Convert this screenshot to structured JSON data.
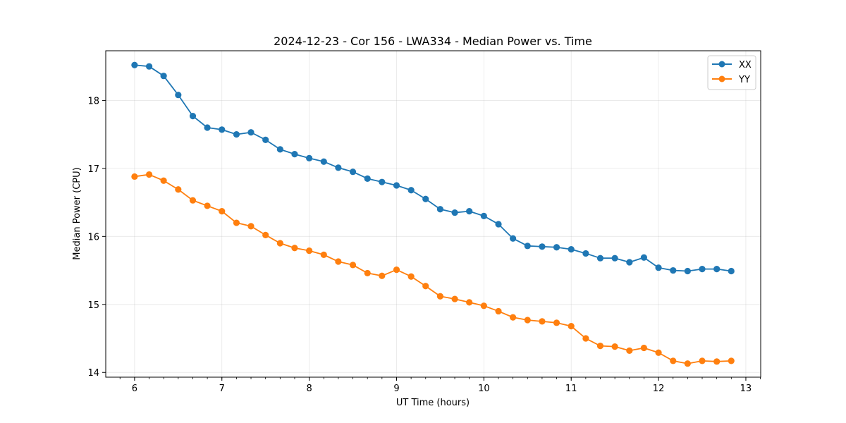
{
  "chart_data": {
    "type": "line",
    "title": "2024-12-23 - Cor 156 - LWA334 - Median Power vs. Time",
    "xlabel": "UT Time (hours)",
    "ylabel": "Median Power (CPU)",
    "xlim": [
      5.67,
      13.17
    ],
    "ylim": [
      13.93,
      18.73
    ],
    "xticks": [
      6,
      7,
      8,
      9,
      10,
      11,
      12,
      13
    ],
    "xtick_labels": [
      "6",
      "7",
      "8",
      "9",
      "10",
      "11",
      "12",
      "13"
    ],
    "yticks": [
      14,
      15,
      16,
      17,
      18
    ],
    "ytick_labels": [
      "14",
      "15",
      "16",
      "17",
      "18"
    ],
    "grid": true,
    "legend_position": "top-right",
    "x": [
      6.0,
      6.167,
      6.333,
      6.5,
      6.667,
      6.833,
      7.0,
      7.167,
      7.333,
      7.5,
      7.667,
      7.833,
      8.0,
      8.167,
      8.333,
      8.5,
      8.667,
      8.833,
      9.0,
      9.167,
      9.333,
      9.5,
      9.667,
      9.833,
      10.0,
      10.167,
      10.333,
      10.5,
      10.667,
      10.833,
      11.0,
      11.167,
      11.333,
      11.5,
      11.667,
      11.833,
      12.0,
      12.167,
      12.333,
      12.5,
      12.667,
      12.833
    ],
    "series": [
      {
        "name": "XX",
        "color": "#1f77b4",
        "values": [
          18.52,
          18.5,
          18.36,
          18.08,
          17.77,
          17.6,
          17.57,
          17.5,
          17.53,
          17.42,
          17.28,
          17.21,
          17.15,
          17.1,
          17.01,
          16.95,
          16.85,
          16.8,
          16.75,
          16.68,
          16.55,
          16.4,
          16.35,
          16.37,
          16.3,
          16.18,
          15.97,
          15.86,
          15.85,
          15.84,
          15.81,
          15.75,
          15.68,
          15.68,
          15.62,
          15.69,
          15.54,
          15.5,
          15.49,
          15.52,
          15.52,
          15.49
        ]
      },
      {
        "name": "YY",
        "color": "#ff7f0e",
        "values": [
          16.88,
          16.91,
          16.82,
          16.69,
          16.53,
          16.45,
          16.37,
          16.2,
          16.15,
          16.02,
          15.9,
          15.83,
          15.79,
          15.73,
          15.63,
          15.58,
          15.46,
          15.42,
          15.51,
          15.41,
          15.27,
          15.12,
          15.08,
          15.03,
          14.98,
          14.9,
          14.81,
          14.77,
          14.75,
          14.73,
          14.68,
          14.5,
          14.39,
          14.38,
          14.32,
          14.36,
          14.29,
          14.17,
          14.13,
          14.17,
          14.16,
          14.17
        ]
      }
    ]
  }
}
